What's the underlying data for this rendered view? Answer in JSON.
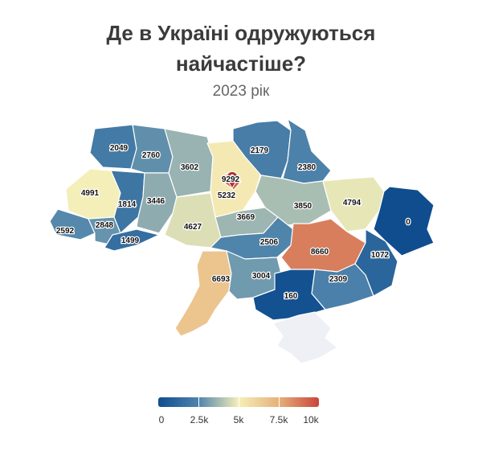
{
  "title_line1": "Де в Україні одружуються",
  "title_line2": "найчастіше?",
  "subtitle": "2023 рік",
  "legend": {
    "ticks": [
      "0",
      "2.5k",
      "5k",
      "7.5k",
      "10k"
    ],
    "min": 0,
    "max": 10000
  },
  "colors": {
    "low": "#0f4d8f",
    "midlow": "#4f84ab",
    "mid": "#f5efb8",
    "midhigh": "#e7b07a",
    "high": "#c9453b",
    "nodata": "#eef0f5"
  },
  "regions": [
    {
      "id": "volyn",
      "value": 2049
    },
    {
      "id": "rivne",
      "value": 2760
    },
    {
      "id": "zhytomyr",
      "value": 3602
    },
    {
      "id": "kyiv-oblast",
      "value": 5232
    },
    {
      "id": "kyiv-city",
      "value": 9292
    },
    {
      "id": "chernihiv",
      "value": 2179
    },
    {
      "id": "sumy",
      "value": 2380
    },
    {
      "id": "lviv",
      "value": 4991
    },
    {
      "id": "ternopil",
      "value": 1814
    },
    {
      "id": "khmelnytskyi",
      "value": 3446
    },
    {
      "id": "vinnytsia",
      "value": 4627
    },
    {
      "id": "cherkasy",
      "value": 3669
    },
    {
      "id": "poltava",
      "value": 3850
    },
    {
      "id": "kharkiv",
      "value": 4794
    },
    {
      "id": "luhansk",
      "value": 0
    },
    {
      "id": "zakarpattia",
      "value": 2592
    },
    {
      "id": "ivano-frankivsk",
      "value": 2848
    },
    {
      "id": "chernivtsi",
      "value": 1499
    },
    {
      "id": "kirovohrad",
      "value": 2506
    },
    {
      "id": "dnipropetrovsk",
      "value": 8660
    },
    {
      "id": "donetsk",
      "value": 1072
    },
    {
      "id": "odesa",
      "value": 6693
    },
    {
      "id": "mykolaiv",
      "value": 3004
    },
    {
      "id": "zaporizhzhia",
      "value": 2309
    },
    {
      "id": "kherson",
      "value": 160
    },
    {
      "id": "crimea"
    }
  ]
}
